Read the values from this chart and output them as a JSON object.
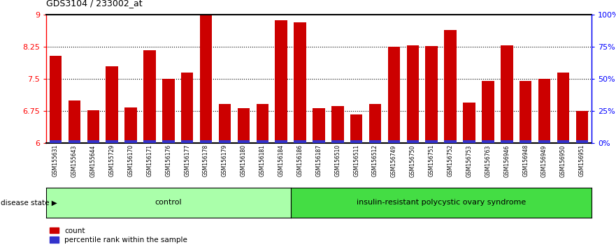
{
  "title": "GDS3104 / 233002_at",
  "samples": [
    "GSM155631",
    "GSM155643",
    "GSM155644",
    "GSM155729",
    "GSM156170",
    "GSM156171",
    "GSM156176",
    "GSM156177",
    "GSM156178",
    "GSM156179",
    "GSM156180",
    "GSM156181",
    "GSM156184",
    "GSM156186",
    "GSM156187",
    "GSM156510",
    "GSM156511",
    "GSM156512",
    "GSM156749",
    "GSM156750",
    "GSM156751",
    "GSM156752",
    "GSM156753",
    "GSM156763",
    "GSM156946",
    "GSM156948",
    "GSM156949",
    "GSM156950",
    "GSM156951"
  ],
  "counts": [
    8.05,
    7.0,
    6.77,
    7.8,
    6.83,
    8.17,
    7.5,
    7.65,
    8.98,
    6.92,
    6.82,
    6.92,
    8.88,
    8.82,
    6.82,
    6.87,
    6.67,
    6.92,
    8.25,
    8.28,
    8.27,
    8.65,
    6.95,
    7.45,
    8.28,
    7.45,
    7.5,
    7.65,
    6.75
  ],
  "percentile_ranks": [
    2,
    2,
    2,
    2,
    2,
    4,
    2,
    2,
    4,
    2,
    2,
    2,
    2,
    2,
    2,
    2,
    2,
    2,
    2,
    2,
    2,
    2,
    2,
    2,
    2,
    2,
    2,
    2,
    2
  ],
  "control_count": 13,
  "disease_count": 16,
  "ylim_left": [
    6,
    9
  ],
  "yticks_left": [
    6,
    6.75,
    7.5,
    8.25,
    9
  ],
  "ytick_labels_left": [
    "6",
    "6.75",
    "7.5",
    "8.25",
    "9"
  ],
  "yticks_right": [
    0,
    25,
    50,
    75,
    100
  ],
  "ytick_labels_right": [
    "0%",
    "25%",
    "50%",
    "75%",
    "100%"
  ],
  "bar_color": "#cc0000",
  "percentile_color": "#3333cc",
  "control_color": "#aaffaa",
  "disease_color": "#44dd44",
  "bg_color": "#cccccc",
  "control_label": "control",
  "disease_label": "insulin-resistant polycystic ovary syndrome",
  "disease_state_label": "disease state"
}
